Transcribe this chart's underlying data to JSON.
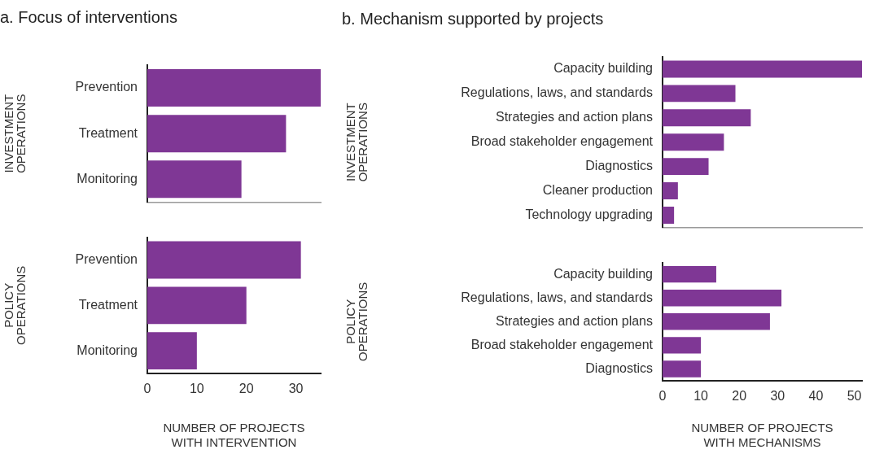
{
  "chart_data": [
    {
      "type": "bar",
      "orientation": "horizontal",
      "title": "a. Focus of interventions",
      "ylabel": "INVESTMENT\nOPERATIONS",
      "categories": [
        "Prevention",
        "Treatment",
        "Monitoring"
      ],
      "values": [
        35,
        28,
        19
      ],
      "color": "#7f3795",
      "xlim": [
        0,
        35
      ],
      "xticks": [
        0,
        10,
        20,
        30
      ],
      "tick_labels": "y"
    },
    {
      "type": "bar",
      "orientation": "horizontal",
      "ylabel": "POLICY\nOPERATIONS",
      "xlabel": "NUMBER OF PROJECTS\nWITH INTERVENTION",
      "categories": [
        "Prevention",
        "Treatment",
        "Monitoring"
      ],
      "values": [
        31,
        20,
        10
      ],
      "color": "#7f3795",
      "xlim": [
        0,
        35
      ],
      "xticks": [
        0,
        10,
        20,
        30
      ]
    },
    {
      "type": "bar",
      "orientation": "horizontal",
      "title": "b. Mechanism supported by projects",
      "ylabel": "INVESTMENT\nOPERATIONS",
      "categories": [
        "Capacity building",
        "Regulations, laws, and standards",
        "Strategies and action plans",
        "Broad stakeholder engagement",
        "Diagnostics",
        "Cleaner production",
        "Technology upgrading"
      ],
      "values": [
        52,
        19,
        23,
        16,
        12,
        4,
        3
      ],
      "color": "#7f3795",
      "xlim": [
        0,
        52
      ],
      "xticks": [
        0,
        10,
        20,
        30,
        40,
        50
      ],
      "tick_labels": "y"
    },
    {
      "type": "bar",
      "orientation": "horizontal",
      "ylabel": "POLICY\nOPERATIONS",
      "xlabel": "NUMBER OF PROJECTS\nWITH MECHANISMS",
      "categories": [
        "Capacity building",
        "Regulations, laws, and standards",
        "Strategies and action plans",
        "Broad stakeholder engagement",
        "Diagnostics"
      ],
      "values": [
        14,
        31,
        28,
        10,
        10
      ],
      "color": "#7f3795",
      "xlim": [
        0,
        52
      ],
      "xticks": [
        0,
        10,
        20,
        30,
        40,
        50
      ]
    }
  ]
}
